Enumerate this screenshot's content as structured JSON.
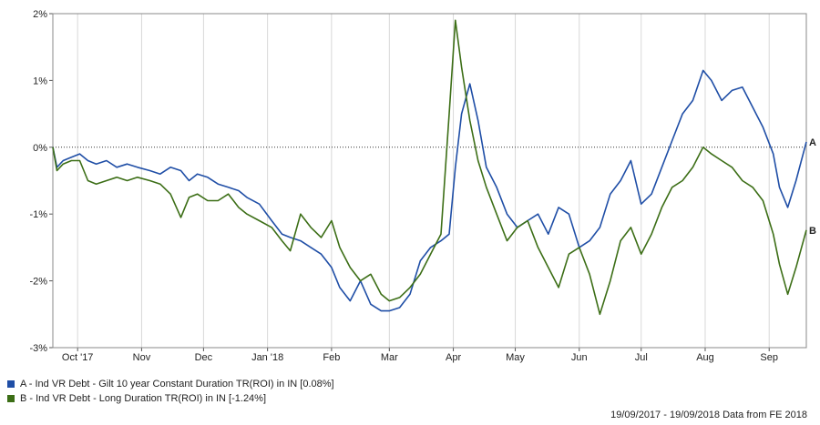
{
  "chart_data": {
    "type": "line",
    "ylim": [
      -3,
      2
    ],
    "y_ticks": [
      "2%",
      "1%",
      "0%",
      "-1%",
      "-2%",
      "-3%"
    ],
    "y_tick_values": [
      2,
      1,
      0,
      -1,
      -2,
      -3
    ],
    "x_tick_labels": [
      "Oct '17",
      "Nov",
      "Dec",
      "Jan '18",
      "Feb",
      "Mar",
      "Apr",
      "May",
      "Jun",
      "Jul",
      "Aug",
      "Sep"
    ],
    "x_tick_dates": [
      "2017-10-01",
      "2017-11-01",
      "2017-12-01",
      "2018-01-01",
      "2018-02-01",
      "2018-03-01",
      "2018-04-01",
      "2018-05-01",
      "2018-06-01",
      "2018-07-01",
      "2018-08-01",
      "2018-09-01"
    ],
    "x_range": [
      "2017-09-19",
      "2018-09-19"
    ],
    "grid": "vertical",
    "zero_line": "dotted",
    "series": [
      {
        "name": "A",
        "color": "#1f4ea6",
        "x": [
          "2017-09-19",
          "2017-09-21",
          "2017-09-24",
          "2017-09-28",
          "2017-10-02",
          "2017-10-06",
          "2017-10-10",
          "2017-10-15",
          "2017-10-20",
          "2017-10-25",
          "2017-10-30",
          "2017-11-05",
          "2017-11-10",
          "2017-11-15",
          "2017-11-20",
          "2017-11-24",
          "2017-11-28",
          "2017-12-03",
          "2017-12-08",
          "2017-12-13",
          "2017-12-18",
          "2017-12-22",
          "2017-12-28",
          "2018-01-03",
          "2018-01-08",
          "2018-01-12",
          "2018-01-17",
          "2018-01-22",
          "2018-01-27",
          "2018-02-01",
          "2018-02-05",
          "2018-02-10",
          "2018-02-15",
          "2018-02-20",
          "2018-02-25",
          "2018-03-01",
          "2018-03-06",
          "2018-03-11",
          "2018-03-16",
          "2018-03-21",
          "2018-03-26",
          "2018-03-30",
          "2018-04-02",
          "2018-04-05",
          "2018-04-09",
          "2018-04-13",
          "2018-04-17",
          "2018-04-22",
          "2018-04-27",
          "2018-05-02",
          "2018-05-07",
          "2018-05-12",
          "2018-05-17",
          "2018-05-22",
          "2018-05-27",
          "2018-06-01",
          "2018-06-06",
          "2018-06-11",
          "2018-06-16",
          "2018-06-21",
          "2018-06-26",
          "2018-07-01",
          "2018-07-06",
          "2018-07-11",
          "2018-07-16",
          "2018-07-21",
          "2018-07-26",
          "2018-07-31",
          "2018-08-04",
          "2018-08-09",
          "2018-08-14",
          "2018-08-19",
          "2018-08-24",
          "2018-08-29",
          "2018-09-03",
          "2018-09-06",
          "2018-09-10",
          "2018-09-14",
          "2018-09-19"
        ],
        "values": [
          0.0,
          -0.3,
          -0.2,
          -0.15,
          -0.1,
          -0.2,
          -0.25,
          -0.2,
          -0.3,
          -0.25,
          -0.3,
          -0.35,
          -0.4,
          -0.3,
          -0.35,
          -0.5,
          -0.4,
          -0.45,
          -0.55,
          -0.6,
          -0.65,
          -0.75,
          -0.85,
          -1.1,
          -1.3,
          -1.35,
          -1.4,
          -1.5,
          -1.6,
          -1.8,
          -2.1,
          -2.3,
          -2.0,
          -2.35,
          -2.45,
          -2.45,
          -2.4,
          -2.2,
          -1.7,
          -1.5,
          -1.4,
          -1.3,
          -0.3,
          0.5,
          0.95,
          0.4,
          -0.3,
          -0.6,
          -1.0,
          -1.2,
          -1.1,
          -1.0,
          -1.3,
          -0.9,
          -1.0,
          -1.5,
          -1.4,
          -1.2,
          -0.7,
          -0.5,
          -0.2,
          -0.85,
          -0.7,
          -0.3,
          0.1,
          0.5,
          0.7,
          1.15,
          1.0,
          0.7,
          0.85,
          0.9,
          0.6,
          0.3,
          -0.1,
          -0.6,
          -0.9,
          -0.5,
          0.08
        ]
      },
      {
        "name": "B",
        "color": "#3c6e16",
        "x": [
          "2017-09-19",
          "2017-09-21",
          "2017-09-24",
          "2017-09-28",
          "2017-10-02",
          "2017-10-06",
          "2017-10-10",
          "2017-10-15",
          "2017-10-20",
          "2017-10-25",
          "2017-10-30",
          "2017-11-05",
          "2017-11-10",
          "2017-11-15",
          "2017-11-20",
          "2017-11-24",
          "2017-11-28",
          "2017-12-03",
          "2017-12-08",
          "2017-12-13",
          "2017-12-18",
          "2017-12-22",
          "2017-12-28",
          "2018-01-03",
          "2018-01-08",
          "2018-01-12",
          "2018-01-17",
          "2018-01-22",
          "2018-01-27",
          "2018-02-01",
          "2018-02-05",
          "2018-02-10",
          "2018-02-15",
          "2018-02-20",
          "2018-02-25",
          "2018-03-01",
          "2018-03-06",
          "2018-03-11",
          "2018-03-16",
          "2018-03-21",
          "2018-03-26",
          "2018-03-30",
          "2018-04-02",
          "2018-04-05",
          "2018-04-09",
          "2018-04-13",
          "2018-04-17",
          "2018-04-22",
          "2018-04-27",
          "2018-05-02",
          "2018-05-07",
          "2018-05-12",
          "2018-05-17",
          "2018-05-22",
          "2018-05-27",
          "2018-06-01",
          "2018-06-06",
          "2018-06-11",
          "2018-06-16",
          "2018-06-21",
          "2018-06-26",
          "2018-07-01",
          "2018-07-06",
          "2018-07-11",
          "2018-07-16",
          "2018-07-21",
          "2018-07-26",
          "2018-07-31",
          "2018-08-04",
          "2018-08-09",
          "2018-08-14",
          "2018-08-19",
          "2018-08-24",
          "2018-08-29",
          "2018-09-03",
          "2018-09-06",
          "2018-09-10",
          "2018-09-14",
          "2018-09-19"
        ],
        "values": [
          0.0,
          -0.35,
          -0.25,
          -0.2,
          -0.2,
          -0.5,
          -0.55,
          -0.5,
          -0.45,
          -0.5,
          -0.45,
          -0.5,
          -0.55,
          -0.7,
          -1.05,
          -0.75,
          -0.7,
          -0.8,
          -0.8,
          -0.7,
          -0.9,
          -1.0,
          -1.1,
          -1.2,
          -1.4,
          -1.55,
          -1.0,
          -1.2,
          -1.35,
          -1.1,
          -1.5,
          -1.8,
          -2.0,
          -1.9,
          -2.2,
          -2.3,
          -2.25,
          -2.1,
          -1.9,
          -1.6,
          -1.3,
          0.5,
          1.9,
          1.2,
          0.4,
          -0.2,
          -0.6,
          -1.0,
          -1.4,
          -1.2,
          -1.1,
          -1.5,
          -1.8,
          -2.1,
          -1.6,
          -1.5,
          -1.9,
          -2.5,
          -2.0,
          -1.4,
          -1.2,
          -1.6,
          -1.3,
          -0.9,
          -0.6,
          -0.5,
          -0.3,
          0.0,
          -0.1,
          -0.2,
          -0.3,
          -0.5,
          -0.6,
          -0.8,
          -1.3,
          -1.75,
          -2.2,
          -1.8,
          -1.24
        ]
      }
    ],
    "legend": {
      "placement": "bottom-left",
      "entries": [
        {
          "label": "A - Ind VR Debt - Gilt 10 year Constant Duration TR(ROI) in IN [0.08%]",
          "color": "#1f4ea6"
        },
        {
          "label": "B - Ind VR Debt - Long Duration TR(ROI) in IN [-1.24%]",
          "color": "#3c6e16"
        }
      ]
    }
  },
  "footer": "19/09/2017 - 19/09/2018 Data from FE 2018"
}
